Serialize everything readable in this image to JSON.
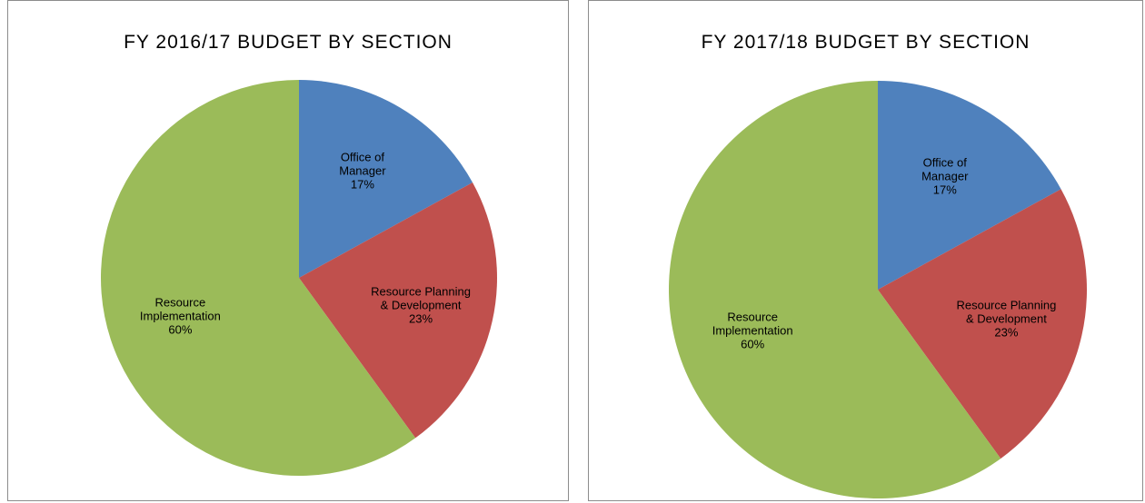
{
  "chart_data": [
    {
      "type": "pie",
      "title": "FY 2016/17 BUDGET BY SECTION",
      "categories": [
        "Office of Manager",
        "Resource Planning & Development",
        "Resource Implementation"
      ],
      "values": [
        17,
        23,
        60
      ],
      "value_labels": [
        "17%",
        "23%",
        "60%"
      ],
      "colors": [
        "#4f81bd",
        "#c0504d",
        "#9bbb59"
      ]
    },
    {
      "type": "pie",
      "title": "FY 2017/18 BUDGET BY SECTION",
      "categories": [
        "Office of Manager",
        "Resource Planning & Development",
        "Resource Implementation"
      ],
      "values": [
        17,
        23,
        60
      ],
      "value_labels": [
        "17%",
        "23%",
        "60%"
      ],
      "colors": [
        "#4f81bd",
        "#c0504d",
        "#9bbb59"
      ]
    }
  ]
}
